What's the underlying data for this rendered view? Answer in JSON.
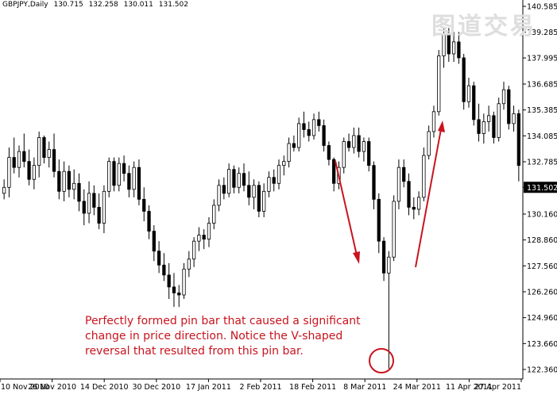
{
  "header": {
    "symbol": "GBPJPY,Daily",
    "open": "130.715",
    "high": "132.258",
    "low": "130.011",
    "close": "131.502"
  },
  "watermark": "图道交易",
  "annotation": {
    "lines": [
      "Perfectly formed pin bar that caused a significant",
      "change in price direction. Notice the V-shaped",
      "reversal that resulted from this pin bar."
    ],
    "color": "#c8141e"
  },
  "chart_data": {
    "type": "candlestick",
    "y_ticks": [
      "140.585",
      "139.285",
      "137.995",
      "136.685",
      "135.385",
      "134.085",
      "132.785",
      "131.502",
      "130.160",
      "128.860",
      "127.560",
      "126.260",
      "124.960",
      "123.660",
      "122.360"
    ],
    "current_price": "131.502",
    "ylim": [
      121.8,
      140.9
    ],
    "x_labels": [
      "10 Nov 2010",
      "26 Nov 2010",
      "14 Dec 2010",
      "30 Dec 2010",
      "17 Jan 2011",
      "2 Feb 2011",
      "18 Feb 2011",
      "8 Mar 2011",
      "24 Mar 2011",
      "11 Apr 2011",
      "27 Apr 2011"
    ],
    "candles": [
      [
        131.2,
        131.9,
        130.9,
        131.5
      ],
      [
        131.5,
        133.5,
        131.0,
        133.0
      ],
      [
        133.0,
        134.0,
        132.2,
        132.5
      ],
      [
        132.5,
        133.6,
        132.0,
        133.3
      ],
      [
        133.3,
        134.2,
        132.5,
        132.8
      ],
      [
        132.8,
        133.4,
        131.6,
        131.9
      ],
      [
        131.9,
        133.0,
        131.4,
        132.6
      ],
      [
        132.6,
        134.3,
        132.0,
        134.0
      ],
      [
        134.0,
        134.1,
        132.7,
        133.0
      ],
      [
        133.0,
        133.8,
        132.5,
        133.4
      ],
      [
        133.4,
        134.2,
        132.0,
        132.3
      ],
      [
        132.3,
        132.9,
        130.9,
        131.3
      ],
      [
        131.3,
        132.8,
        130.8,
        132.3
      ],
      [
        132.3,
        132.6,
        131.0,
        131.4
      ],
      [
        131.4,
        132.4,
        130.9,
        131.7
      ],
      [
        131.7,
        132.2,
        130.3,
        130.8
      ],
      [
        130.8,
        131.4,
        129.6,
        130.2
      ],
      [
        130.2,
        131.8,
        129.7,
        131.2
      ],
      [
        131.2,
        131.6,
        130.1,
        130.5
      ],
      [
        130.5,
        131.2,
        129.4,
        129.7
      ],
      [
        129.7,
        131.6,
        129.2,
        131.3
      ],
      [
        131.3,
        133.0,
        131.0,
        132.8
      ],
      [
        132.8,
        133.0,
        131.3,
        131.6
      ],
      [
        131.6,
        133.0,
        131.3,
        132.7
      ],
      [
        132.7,
        133.1,
        131.8,
        132.2
      ],
      [
        132.2,
        132.6,
        131.0,
        131.4
      ],
      [
        131.4,
        132.8,
        131.0,
        132.5
      ],
      [
        132.5,
        132.9,
        130.6,
        130.9
      ],
      [
        130.9,
        131.5,
        129.8,
        130.3
      ],
      [
        130.3,
        130.6,
        128.9,
        129.3
      ],
      [
        129.3,
        129.6,
        127.8,
        128.3
      ],
      [
        128.3,
        128.8,
        127.2,
        127.6
      ],
      [
        127.6,
        128.2,
        126.8,
        127.1
      ],
      [
        127.1,
        127.7,
        125.9,
        126.5
      ],
      [
        126.5,
        127.2,
        125.5,
        126.2
      ],
      [
        126.2,
        126.6,
        125.5,
        126.1
      ],
      [
        126.1,
        127.7,
        125.9,
        127.4
      ],
      [
        127.4,
        128.3,
        127.0,
        127.9
      ],
      [
        127.9,
        129.0,
        127.5,
        128.8
      ],
      [
        128.8,
        129.5,
        128.3,
        129.1
      ],
      [
        129.1,
        129.4,
        128.4,
        128.9
      ],
      [
        128.9,
        130.0,
        128.5,
        129.7
      ],
      [
        129.7,
        130.9,
        129.4,
        130.6
      ],
      [
        130.6,
        131.9,
        130.3,
        131.6
      ],
      [
        131.6,
        132.0,
        130.9,
        131.2
      ],
      [
        131.2,
        132.7,
        131.0,
        132.4
      ],
      [
        132.4,
        132.6,
        131.2,
        131.5
      ],
      [
        131.5,
        132.5,
        131.2,
        132.2
      ],
      [
        132.2,
        132.7,
        131.3,
        131.6
      ],
      [
        131.6,
        132.3,
        130.6,
        131.0
      ],
      [
        131.0,
        131.9,
        130.4,
        131.6
      ],
      [
        131.6,
        131.8,
        130.0,
        130.3
      ],
      [
        130.3,
        131.7,
        130.0,
        131.3
      ],
      [
        131.3,
        132.3,
        131.0,
        132.0
      ],
      [
        132.0,
        132.4,
        131.3,
        131.7
      ],
      [
        131.7,
        132.9,
        131.4,
        132.6
      ],
      [
        132.6,
        133.1,
        132.1,
        132.8
      ],
      [
        132.8,
        134.0,
        132.5,
        133.7
      ],
      [
        133.7,
        134.1,
        133.3,
        133.5
      ],
      [
        133.5,
        135.0,
        133.3,
        134.7
      ],
      [
        134.7,
        135.3,
        134.0,
        134.4
      ],
      [
        134.4,
        134.8,
        133.8,
        134.1
      ],
      [
        134.1,
        135.2,
        133.9,
        134.9
      ],
      [
        134.9,
        135.3,
        134.3,
        134.6
      ],
      [
        134.6,
        134.9,
        133.3,
        133.6
      ],
      [
        133.6,
        133.8,
        132.6,
        132.9
      ],
      [
        132.9,
        133.0,
        131.3,
        131.7
      ],
      [
        131.7,
        132.8,
        131.4,
        132.5
      ],
      [
        132.5,
        134.0,
        132.2,
        133.8
      ],
      [
        133.8,
        134.2,
        133.3,
        133.5
      ],
      [
        133.5,
        134.5,
        133.2,
        134.1
      ],
      [
        134.1,
        134.5,
        133.0,
        133.3
      ],
      [
        133.3,
        134.0,
        132.8,
        133.8
      ],
      [
        133.8,
        134.0,
        132.3,
        132.6
      ],
      [
        132.6,
        132.8,
        130.4,
        130.9
      ],
      [
        130.9,
        131.2,
        128.2,
        128.8
      ],
      [
        128.8,
        129.0,
        126.8,
        127.2
      ],
      [
        127.2,
        128.3,
        122.4,
        128.0
      ],
      [
        128.0,
        131.1,
        127.8,
        130.8
      ],
      [
        130.8,
        132.9,
        130.4,
        132.5
      ],
      [
        132.5,
        132.9,
        131.5,
        131.8
      ],
      [
        131.8,
        132.2,
        130.1,
        130.5
      ],
      [
        130.5,
        131.0,
        129.9,
        130.4
      ],
      [
        130.4,
        131.3,
        130.1,
        131.0
      ],
      [
        131.0,
        133.5,
        130.8,
        133.1
      ],
      [
        133.1,
        134.6,
        132.9,
        134.3
      ],
      [
        134.3,
        135.6,
        134.0,
        135.3
      ],
      [
        135.3,
        138.4,
        135.1,
        138.1
      ],
      [
        138.1,
        139.5,
        137.5,
        139.2
      ],
      [
        139.2,
        139.5,
        137.8,
        138.2
      ],
      [
        138.2,
        139.3,
        137.8,
        138.8
      ],
      [
        138.8,
        139.3,
        137.7,
        138.0
      ],
      [
        138.0,
        138.2,
        135.4,
        135.8
      ],
      [
        135.8,
        137.0,
        135.5,
        136.6
      ],
      [
        136.6,
        136.8,
        134.6,
        134.9
      ],
      [
        134.9,
        135.7,
        133.8,
        134.2
      ],
      [
        134.2,
        135.2,
        133.7,
        134.8
      ],
      [
        134.8,
        135.6,
        134.3,
        135.1
      ],
      [
        135.1,
        135.3,
        133.7,
        134.0
      ],
      [
        134.0,
        136.0,
        133.8,
        135.7
      ],
      [
        135.7,
        136.8,
        135.4,
        136.4
      ],
      [
        136.4,
        136.6,
        134.4,
        134.7
      ],
      [
        134.7,
        135.6,
        134.3,
        135.2
      ],
      [
        135.2,
        135.4,
        131.8,
        132.6
      ]
    ]
  }
}
